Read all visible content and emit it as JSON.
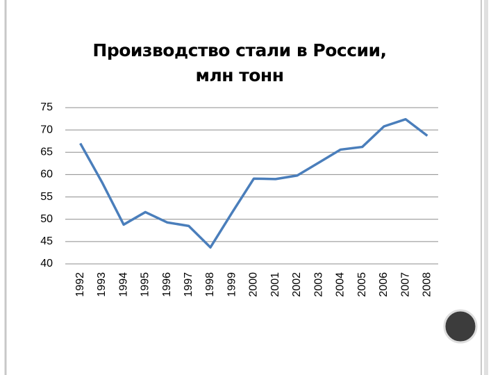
{
  "chart_data": {
    "type": "line",
    "title": "Производство стали в России, млн тонн",
    "categories": [
      "1992",
      "1993",
      "1994",
      "1995",
      "1996",
      "1997",
      "1998",
      "1999",
      "2000",
      "2001",
      "2002",
      "2003",
      "2004",
      "2005",
      "2006",
      "2007",
      "2008"
    ],
    "series": [
      {
        "color": "#4a7ebb",
        "values": [
          67,
          58.3,
          48.8,
          51.6,
          49.3,
          48.5,
          43.7,
          51.5,
          59.1,
          59.0,
          59.8,
          62.7,
          65.6,
          66.2,
          70.8,
          72.4,
          68.7
        ]
      }
    ],
    "ylim": [
      40,
      75
    ],
    "yticks": [
      40,
      45,
      50,
      55,
      60,
      65,
      70,
      75
    ],
    "grid": true
  }
}
